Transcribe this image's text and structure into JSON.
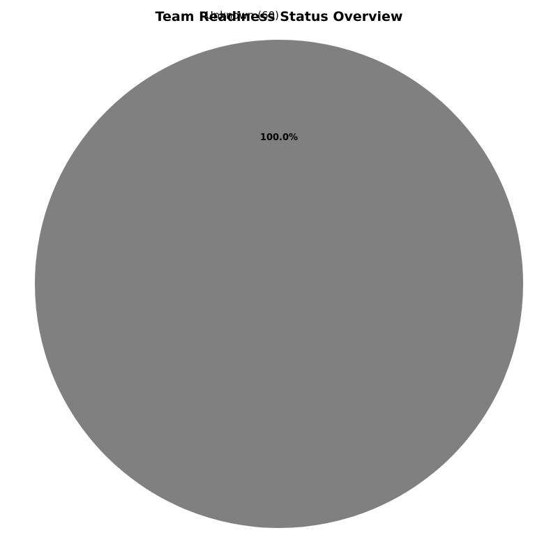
{
  "chart_data": {
    "type": "pie",
    "title": "Team Readiness Status Overview",
    "slices": [
      {
        "label": "Unknown (60)",
        "value": 60,
        "percent_label": "100.0%",
        "color": "#808080"
      }
    ],
    "legend": "none"
  }
}
